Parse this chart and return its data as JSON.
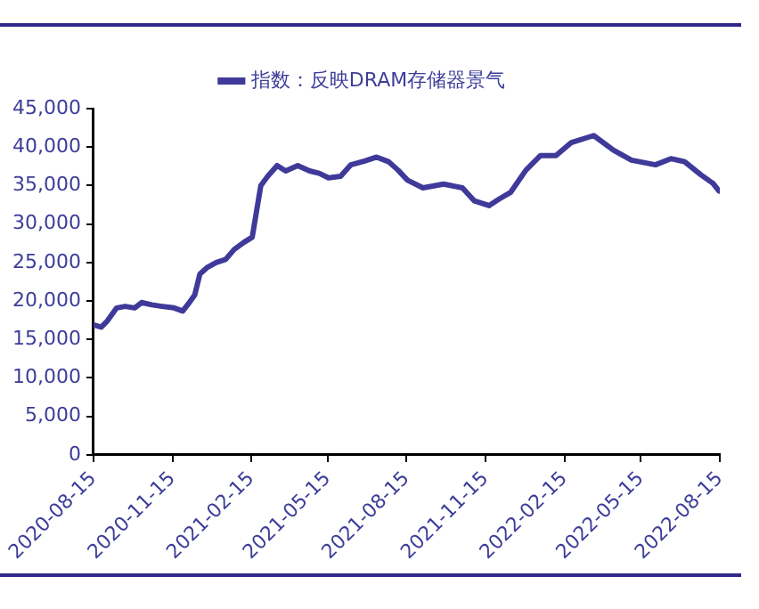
{
  "chart_data": {
    "type": "line",
    "legend": "top",
    "grid": false,
    "marker": "none",
    "line_style": "solid",
    "x": [
      "2020-08-15",
      "2020-08-24",
      "2020-08-31",
      "2020-09-11",
      "2020-09-21",
      "2020-10-02",
      "2020-10-10",
      "2020-10-22",
      "2020-11-03",
      "2020-11-17",
      "2020-11-27",
      "2020-12-04",
      "2020-12-11",
      "2020-12-17",
      "2020-12-26",
      "2021-01-05",
      "2021-01-16",
      "2021-01-26",
      "2021-02-06",
      "2021-02-16",
      "2021-02-26",
      "2021-03-06",
      "2021-03-17",
      "2021-03-27",
      "2021-04-10",
      "2021-04-24",
      "2021-05-05",
      "2021-05-16",
      "2021-05-30",
      "2021-06-11",
      "2021-06-27",
      "2021-07-11",
      "2021-07-25",
      "2021-08-05",
      "2021-08-16",
      "2021-09-03",
      "2021-09-27",
      "2021-10-19",
      "2021-11-02",
      "2021-11-19",
      "2021-11-30",
      "2021-12-14",
      "2022-01-01",
      "2022-01-18",
      "2022-02-05",
      "2022-02-23",
      "2022-03-21",
      "2022-04-13",
      "2022-05-04",
      "2022-06-01",
      "2022-06-19",
      "2022-07-05",
      "2022-07-24",
      "2022-08-07",
      "2022-08-14"
    ],
    "series": [
      {
        "name": "指数：反映DRAM存储器景气",
        "color": "#3f3a99",
        "values": [
          16900,
          16600,
          17400,
          19100,
          19300,
          19100,
          19800,
          19500,
          19300,
          19100,
          18700,
          19700,
          20800,
          23500,
          24400,
          25000,
          25400,
          26700,
          27600,
          28300,
          35000,
          36200,
          37600,
          36900,
          37600,
          36900,
          36600,
          36000,
          36200,
          37700,
          38200,
          38700,
          38100,
          37000,
          35700,
          34700,
          35200,
          34700,
          33000,
          32400,
          33200,
          34100,
          37000,
          38900,
          38900,
          40600,
          41500,
          39600,
          38300,
          37700,
          38500,
          38100,
          36400,
          35300,
          34300
        ]
      }
    ],
    "xlim": [
      "2020-08-15",
      "2022-08-15"
    ],
    "xticks": [
      "2020-08-15",
      "2020-11-15",
      "2021-02-15",
      "2021-05-15",
      "2021-08-15",
      "2021-11-15",
      "2022-02-15",
      "2022-05-15",
      "2022-08-15"
    ],
    "ylim": [
      0,
      45000
    ],
    "yticks": [
      {
        "value": 0,
        "label": "0"
      },
      {
        "value": 5000,
        "label": "5,000"
      },
      {
        "value": 10000,
        "label": "10,000"
      },
      {
        "value": 15000,
        "label": "15,000"
      },
      {
        "value": 20000,
        "label": "20,000"
      },
      {
        "value": 25000,
        "label": "25,000"
      },
      {
        "value": 30000,
        "label": "30,000"
      },
      {
        "value": 35000,
        "label": "35,000"
      },
      {
        "value": 40000,
        "label": "40,000"
      },
      {
        "value": 45000,
        "label": "45,000"
      }
    ]
  }
}
